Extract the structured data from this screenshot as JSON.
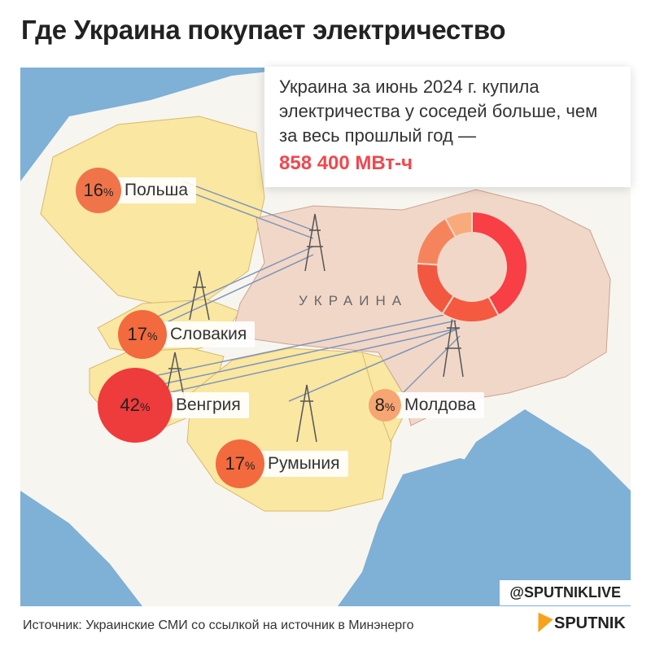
{
  "title": "Где Украина покупает электричество",
  "callout": {
    "text": "Украина за июнь 2024 г. купила электричества у соседей больше, чем за весь прошлый год —",
    "value": "858 400 МВт-ч"
  },
  "map_label": "УКРАИНА",
  "countries": [
    {
      "name": "Польша",
      "share": "16",
      "unit": "%",
      "color": "#f0744a"
    },
    {
      "name": "Словакия",
      "share": "17",
      "unit": "%",
      "color": "#f26a3e"
    },
    {
      "name": "Венгрия",
      "share": "42",
      "unit": "%",
      "color": "#ee3b3b"
    },
    {
      "name": "Румыния",
      "share": "17",
      "unit": "%",
      "color": "#f26a3e"
    },
    {
      "name": "Молдова",
      "share": "8",
      "unit": "%",
      "color": "#f7a572"
    }
  ],
  "donut": [
    {
      "country": "Венгрия",
      "value": 42,
      "color": "#f73f45"
    },
    {
      "country": "Румыния",
      "value": 17,
      "color": "#f55a40"
    },
    {
      "country": "Словакия",
      "value": 17,
      "color": "#f2583f"
    },
    {
      "country": "Польша",
      "value": 16,
      "color": "#f5845d"
    },
    {
      "country": "Молдова",
      "value": 8,
      "color": "#f8aa7a"
    }
  ],
  "colors": {
    "sea": "#7fb0d6",
    "land": "#f7f5f0",
    "neighbors": "#f9e7a2",
    "ukraine": "#f1d7c8"
  },
  "handle": "@SPUTNIKLIVE",
  "source": "Источник: Украинские СМИ со ссылкой на источник в Минэнерго",
  "logo": "SPUTNIK"
}
